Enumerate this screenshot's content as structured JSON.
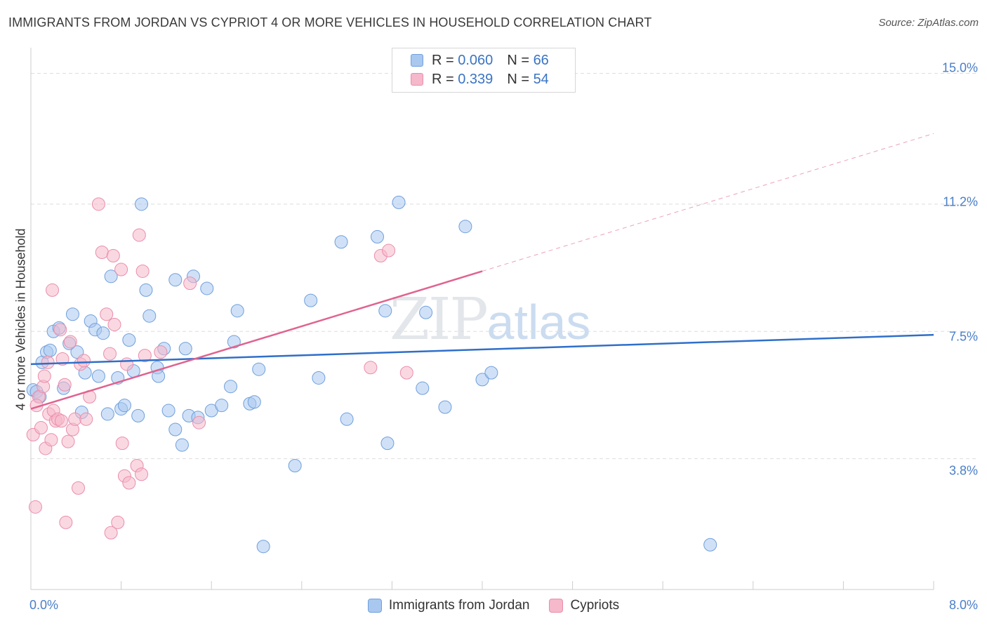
{
  "title": "IMMIGRANTS FROM JORDAN VS CYPRIOT 4 OR MORE VEHICLES IN HOUSEHOLD CORRELATION CHART",
  "source": "Source: ZipAtlas.com",
  "watermark": {
    "zip": "ZIP",
    "atlas": "atlas"
  },
  "colors": {
    "jordan_fill": "#a9c8f0",
    "jordan_stroke": "#6f9fdc",
    "jordan_line": "#2f6fca",
    "cypriot_fill": "#f6b8cb",
    "cypriot_stroke": "#ea8eab",
    "cypriot_line": "#e06390",
    "grid": "#dddddd",
    "axis": "#cccccc"
  },
  "legend": {
    "jordan": {
      "r_label": "R =",
      "r_value": "0.060",
      "n_label": "N =",
      "n_value": "66"
    },
    "cypriot": {
      "r_label": "R =",
      "r_value": "0.339",
      "n_label": "N =",
      "n_value": "54"
    }
  },
  "bottom_legend": {
    "jordan": "Immigrants from Jordan",
    "cypriot": "Cypriots"
  },
  "chart_data": {
    "type": "scatter",
    "title": "IMMIGRANTS FROM JORDAN VS CYPRIOT 4 OR MORE VEHICLES IN HOUSEHOLD CORRELATION CHART",
    "xlabel": "",
    "ylabel": "4 or more Vehicles in Household",
    "xlim": [
      0,
      8
    ],
    "ylim": [
      0,
      15.5
    ],
    "x_tick_labels": [
      "0.0%",
      "8.0%"
    ],
    "y_ticks": [
      3.8,
      7.5,
      11.2,
      15.0
    ],
    "y_tick_labels": [
      "3.8%",
      "7.5%",
      "11.2%",
      "15.0%"
    ],
    "grid": true,
    "legend_position": "top-center",
    "series": [
      {
        "name": "Immigrants from Jordan",
        "R": 0.06,
        "N": 66,
        "trend": {
          "x": [
            0,
            8
          ],
          "y": [
            6.55,
            7.4
          ]
        },
        "points": [
          [
            0.02,
            5.8
          ],
          [
            0.05,
            5.75
          ],
          [
            0.1,
            6.6
          ],
          [
            0.14,
            6.9
          ],
          [
            0.17,
            6.95
          ],
          [
            0.2,
            7.5
          ],
          [
            0.25,
            7.6
          ],
          [
            0.29,
            5.85
          ],
          [
            0.34,
            7.15
          ],
          [
            0.37,
            8.0
          ],
          [
            0.41,
            6.9
          ],
          [
            0.45,
            5.15
          ],
          [
            0.48,
            6.3
          ],
          [
            0.53,
            7.8
          ],
          [
            0.57,
            7.55
          ],
          [
            0.6,
            6.2
          ],
          [
            0.64,
            7.45
          ],
          [
            0.68,
            5.1
          ],
          [
            0.71,
            9.1
          ],
          [
            0.77,
            6.15
          ],
          [
            0.8,
            5.25
          ],
          [
            0.83,
            5.35
          ],
          [
            0.87,
            7.25
          ],
          [
            0.91,
            6.35
          ],
          [
            0.95,
            5.05
          ],
          [
            0.98,
            11.2
          ],
          [
            1.02,
            8.7
          ],
          [
            1.05,
            7.95
          ],
          [
            1.12,
            6.45
          ],
          [
            1.13,
            6.2
          ],
          [
            1.18,
            7.0
          ],
          [
            1.22,
            5.2
          ],
          [
            1.28,
            4.65
          ],
          [
            1.28,
            9.0
          ],
          [
            1.34,
            4.2
          ],
          [
            1.37,
            7.0
          ],
          [
            1.4,
            5.05
          ],
          [
            1.44,
            9.1
          ],
          [
            1.48,
            5.0
          ],
          [
            1.56,
            8.75
          ],
          [
            1.6,
            5.2
          ],
          [
            1.69,
            5.35
          ],
          [
            1.77,
            5.9
          ],
          [
            1.8,
            7.2
          ],
          [
            1.83,
            8.1
          ],
          [
            1.94,
            5.4
          ],
          [
            1.98,
            5.45
          ],
          [
            2.02,
            6.4
          ],
          [
            2.06,
            1.25
          ],
          [
            2.34,
            3.6
          ],
          [
            2.48,
            8.4
          ],
          [
            2.55,
            6.15
          ],
          [
            2.75,
            10.1
          ],
          [
            2.8,
            4.95
          ],
          [
            3.07,
            10.25
          ],
          [
            3.14,
            8.1
          ],
          [
            3.16,
            4.25
          ],
          [
            3.26,
            11.25
          ],
          [
            3.47,
            5.85
          ],
          [
            3.5,
            8.05
          ],
          [
            3.67,
            5.3
          ],
          [
            3.85,
            10.55
          ],
          [
            4.0,
            6.1
          ],
          [
            4.08,
            6.3
          ],
          [
            6.02,
            1.3
          ],
          [
            0.08,
            5.6
          ]
        ]
      },
      {
        "name": "Cypriots",
        "R": 0.339,
        "N": 54,
        "trend": {
          "x": [
            0,
            4.0
          ],
          "y": [
            5.25,
            9.25
          ]
        },
        "trend_extension": {
          "x": [
            4.0,
            8
          ],
          "y": [
            9.25,
            13.25
          ]
        },
        "points": [
          [
            0.02,
            4.5
          ],
          [
            0.04,
            2.4
          ],
          [
            0.07,
            5.6
          ],
          [
            0.09,
            4.7
          ],
          [
            0.11,
            5.9
          ],
          [
            0.12,
            6.2
          ],
          [
            0.13,
            4.1
          ],
          [
            0.16,
            5.1
          ],
          [
            0.18,
            4.35
          ],
          [
            0.19,
            8.7
          ],
          [
            0.2,
            5.2
          ],
          [
            0.22,
            4.9
          ],
          [
            0.24,
            4.95
          ],
          [
            0.26,
            7.55
          ],
          [
            0.28,
            6.7
          ],
          [
            0.3,
            5.95
          ],
          [
            0.31,
            1.95
          ],
          [
            0.33,
            4.3
          ],
          [
            0.35,
            7.2
          ],
          [
            0.37,
            4.65
          ],
          [
            0.39,
            4.95
          ],
          [
            0.42,
            2.95
          ],
          [
            0.44,
            6.55
          ],
          [
            0.47,
            6.65
          ],
          [
            0.49,
            4.95
          ],
          [
            0.52,
            5.6
          ],
          [
            0.6,
            11.2
          ],
          [
            0.63,
            9.8
          ],
          [
            0.67,
            8.0
          ],
          [
            0.7,
            6.85
          ],
          [
            0.71,
            1.65
          ],
          [
            0.73,
            9.7
          ],
          [
            0.74,
            7.7
          ],
          [
            0.77,
            1.95
          ],
          [
            0.8,
            9.3
          ],
          [
            0.81,
            4.25
          ],
          [
            0.83,
            3.3
          ],
          [
            0.85,
            6.55
          ],
          [
            0.87,
            3.1
          ],
          [
            0.94,
            3.6
          ],
          [
            0.96,
            10.3
          ],
          [
            0.98,
            3.35
          ],
          [
            0.99,
            9.25
          ],
          [
            1.01,
            6.8
          ],
          [
            1.15,
            6.9
          ],
          [
            1.41,
            8.9
          ],
          [
            1.49,
            4.85
          ],
          [
            3.01,
            6.45
          ],
          [
            3.1,
            9.7
          ],
          [
            3.17,
            9.85
          ],
          [
            3.33,
            6.3
          ],
          [
            0.05,
            5.35
          ],
          [
            0.15,
            6.6
          ],
          [
            0.27,
            4.9
          ]
        ]
      }
    ]
  }
}
